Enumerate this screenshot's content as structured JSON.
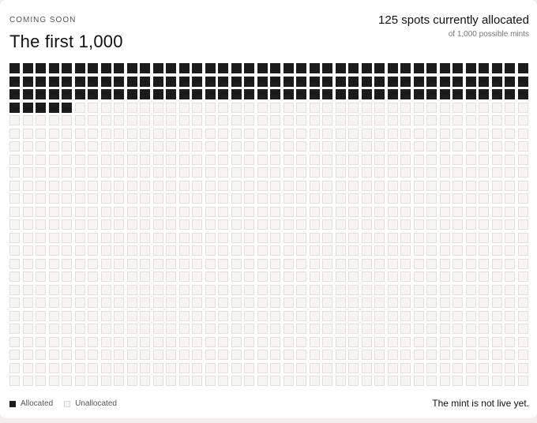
{
  "header": {
    "eyebrow": "COMING SOON",
    "title": "The first 1,000",
    "allocated_headline": "125 spots currently allocated",
    "possible_subtext": "of 1,000 possible mints"
  },
  "grid": {
    "total": 1000,
    "allocated": 125,
    "columns": 40,
    "rows": 25
  },
  "legend": {
    "allocated_label": "Allocated",
    "unallocated_label": "Unallocated"
  },
  "footer": {
    "status": "The mint is not live yet."
  },
  "colors": {
    "allocated": "#1c1c1c",
    "unallocated": "#f6f5f2",
    "card_background": "#ffffff"
  }
}
